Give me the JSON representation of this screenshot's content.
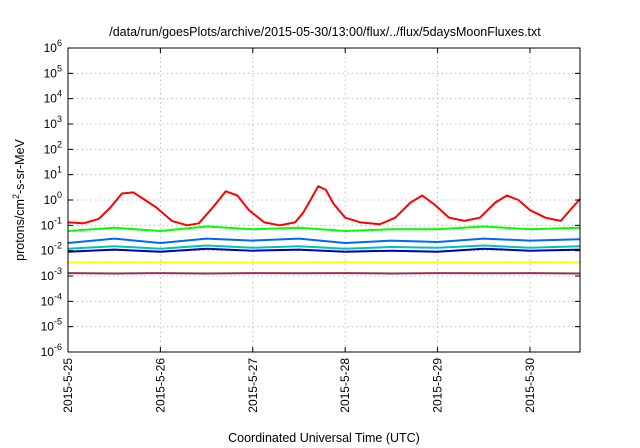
{
  "chart_data": {
    "type": "line",
    "title": "/data/run/goesPlots/archive/2015-05-30/13:00/flux/../flux/5daysMoonFluxes.txt",
    "xlabel": "Coordinated Universal Time (UTC)",
    "ylabel_parts": {
      "base": "protons/cm",
      "sup": "2",
      "rest": "-s-sr-MeV"
    },
    "y_scale": "log",
    "ylim": [
      1e-06,
      1000000.0
    ],
    "y_ticks": [
      {
        "value": 1e-06,
        "base": "10",
        "exp": "-6"
      },
      {
        "value": 1e-05,
        "base": "10",
        "exp": "-5"
      },
      {
        "value": 0.0001,
        "base": "10",
        "exp": "-4"
      },
      {
        "value": 0.001,
        "base": "10",
        "exp": "-3"
      },
      {
        "value": 0.01,
        "base": "10",
        "exp": "-2"
      },
      {
        "value": 0.1,
        "base": "10",
        "exp": "-1"
      },
      {
        "value": 1,
        "base": "10",
        "exp": "0"
      },
      {
        "value": 10,
        "base": "10",
        "exp": "1"
      },
      {
        "value": 100,
        "base": "10",
        "exp": "2"
      },
      {
        "value": 1000,
        "base": "10",
        "exp": "3"
      },
      {
        "value": 10000,
        "base": "10",
        "exp": "4"
      },
      {
        "value": 100000,
        "base": "10",
        "exp": "5"
      },
      {
        "value": 1000000,
        "base": "10",
        "exp": "6"
      }
    ],
    "x_ticks": [
      "2015-5-25",
      "2015-5-26",
      "2015-5-27",
      "2015-5-28",
      "2015-5-29",
      "2015-5-30"
    ],
    "xlim": [
      "2015-05-25 00:00",
      "2015-05-30 13:00"
    ],
    "grid": true,
    "legend": "none",
    "series": [
      {
        "color": "#ff0000",
        "points": [
          [
            "2015-05-25 00:00",
            0.13
          ],
          [
            "2015-05-25 04:00",
            0.12
          ],
          [
            "2015-05-25 08:00",
            0.18
          ],
          [
            "2015-05-25 11:00",
            0.5
          ],
          [
            "2015-05-25 14:00",
            1.8
          ],
          [
            "2015-05-25 17:00",
            2.0
          ],
          [
            "2015-05-25 20:00",
            1.0
          ],
          [
            "2015-05-25 23:00",
            0.5
          ],
          [
            "2015-05-26 03:00",
            0.15
          ],
          [
            "2015-05-26 07:00",
            0.1
          ],
          [
            "2015-05-26 10:00",
            0.12
          ],
          [
            "2015-05-26 14:00",
            0.6
          ],
          [
            "2015-05-26 17:00",
            2.2
          ],
          [
            "2015-05-26 20:00",
            1.5
          ],
          [
            "2015-05-26 23:00",
            0.4
          ],
          [
            "2015-05-27 03:00",
            0.13
          ],
          [
            "2015-05-27 07:00",
            0.1
          ],
          [
            "2015-05-27 11:00",
            0.13
          ],
          [
            "2015-05-27 13:00",
            0.3
          ],
          [
            "2015-05-27 15:00",
            1.0
          ],
          [
            "2015-05-27 17:00",
            3.5
          ],
          [
            "2015-05-27 19:00",
            2.5
          ],
          [
            "2015-05-27 21:00",
            0.7
          ],
          [
            "2015-05-28 00:00",
            0.2
          ],
          [
            "2015-05-28 04:00",
            0.13
          ],
          [
            "2015-05-28 09:00",
            0.11
          ],
          [
            "2015-05-28 13:00",
            0.2
          ],
          [
            "2015-05-28 17:00",
            0.8
          ],
          [
            "2015-05-28 20:00",
            1.5
          ],
          [
            "2015-05-28 23:00",
            0.7
          ],
          [
            "2015-05-29 03:00",
            0.2
          ],
          [
            "2015-05-29 07:00",
            0.15
          ],
          [
            "2015-05-29 11:00",
            0.2
          ],
          [
            "2015-05-29 15:00",
            0.8
          ],
          [
            "2015-05-29 18:00",
            1.5
          ],
          [
            "2015-05-29 21:00",
            1.0
          ],
          [
            "2015-05-30 00:00",
            0.4
          ],
          [
            "2015-05-30 04:00",
            0.2
          ],
          [
            "2015-05-30 08:00",
            0.15
          ],
          [
            "2015-05-30 11:00",
            0.5
          ],
          [
            "2015-05-30 13:00",
            1.1
          ]
        ]
      },
      {
        "color": "#00ff00",
        "points": [
          [
            "2015-05-25 00:00",
            0.06
          ],
          [
            "2015-05-25 12:00",
            0.08
          ],
          [
            "2015-05-26 00:00",
            0.06
          ],
          [
            "2015-05-26 12:00",
            0.09
          ],
          [
            "2015-05-27 00:00",
            0.07
          ],
          [
            "2015-05-27 12:00",
            0.08
          ],
          [
            "2015-05-28 00:00",
            0.06
          ],
          [
            "2015-05-28 12:00",
            0.07
          ],
          [
            "2015-05-29 00:00",
            0.07
          ],
          [
            "2015-05-29 12:00",
            0.09
          ],
          [
            "2015-05-30 00:00",
            0.07
          ],
          [
            "2015-05-30 13:00",
            0.08
          ]
        ]
      },
      {
        "color": "#00c0c0",
        "points": [
          [
            "2015-05-25 00:00",
            0.012
          ],
          [
            "2015-05-25 12:00",
            0.015
          ],
          [
            "2015-05-26 00:00",
            0.012
          ],
          [
            "2015-05-26 12:00",
            0.016
          ],
          [
            "2015-05-27 00:00",
            0.013
          ],
          [
            "2015-05-27 12:00",
            0.015
          ],
          [
            "2015-05-28 00:00",
            0.012
          ],
          [
            "2015-05-28 12:00",
            0.014
          ],
          [
            "2015-05-29 00:00",
            0.013
          ],
          [
            "2015-05-29 12:00",
            0.016
          ],
          [
            "2015-05-30 00:00",
            0.013
          ],
          [
            "2015-05-30 13:00",
            0.015
          ]
        ]
      },
      {
        "color": "#0066ff",
        "points": [
          [
            "2015-05-25 00:00",
            0.02
          ],
          [
            "2015-05-25 12:00",
            0.03
          ],
          [
            "2015-05-26 00:00",
            0.02
          ],
          [
            "2015-05-26 12:00",
            0.03
          ],
          [
            "2015-05-27 00:00",
            0.025
          ],
          [
            "2015-05-27 12:00",
            0.03
          ],
          [
            "2015-05-28 00:00",
            0.02
          ],
          [
            "2015-05-28 12:00",
            0.025
          ],
          [
            "2015-05-29 00:00",
            0.022
          ],
          [
            "2015-05-29 12:00",
            0.03
          ],
          [
            "2015-05-30 00:00",
            0.025
          ],
          [
            "2015-05-30 13:00",
            0.028
          ]
        ]
      },
      {
        "color": "#0000b0",
        "points": [
          [
            "2015-05-25 00:00",
            0.009
          ],
          [
            "2015-05-25 12:00",
            0.011
          ],
          [
            "2015-05-26 00:00",
            0.009
          ],
          [
            "2015-05-26 12:00",
            0.012
          ],
          [
            "2015-05-27 00:00",
            0.01
          ],
          [
            "2015-05-27 12:00",
            0.011
          ],
          [
            "2015-05-28 00:00",
            0.009
          ],
          [
            "2015-05-28 12:00",
            0.01
          ],
          [
            "2015-05-29 00:00",
            0.009
          ],
          [
            "2015-05-29 12:00",
            0.012
          ],
          [
            "2015-05-30 00:00",
            0.01
          ],
          [
            "2015-05-30 13:00",
            0.011
          ]
        ]
      },
      {
        "color": "#ffff00",
        "points": [
          [
            "2015-05-25 00:00",
            0.0035
          ],
          [
            "2015-05-26 00:00",
            0.0035
          ],
          [
            "2015-05-27 00:00",
            0.0034
          ],
          [
            "2015-05-28 00:00",
            0.0035
          ],
          [
            "2015-05-29 00:00",
            0.0034
          ],
          [
            "2015-05-30 00:00",
            0.0035
          ],
          [
            "2015-05-30 13:00",
            0.0035
          ]
        ]
      },
      {
        "color": "#903060",
        "points": [
          [
            "2015-05-25 00:00",
            0.0013
          ],
          [
            "2015-05-25 12:00",
            0.00125
          ],
          [
            "2015-05-26 00:00",
            0.0013
          ],
          [
            "2015-05-26 12:00",
            0.00125
          ],
          [
            "2015-05-27 00:00",
            0.0013
          ],
          [
            "2015-05-27 12:00",
            0.00128
          ],
          [
            "2015-05-28 00:00",
            0.0013
          ],
          [
            "2015-05-28 12:00",
            0.00125
          ],
          [
            "2015-05-29 00:00",
            0.0013
          ],
          [
            "2015-05-29 12:00",
            0.00128
          ],
          [
            "2015-05-30 00:00",
            0.0013
          ],
          [
            "2015-05-30 13:00",
            0.00125
          ]
        ]
      }
    ]
  }
}
